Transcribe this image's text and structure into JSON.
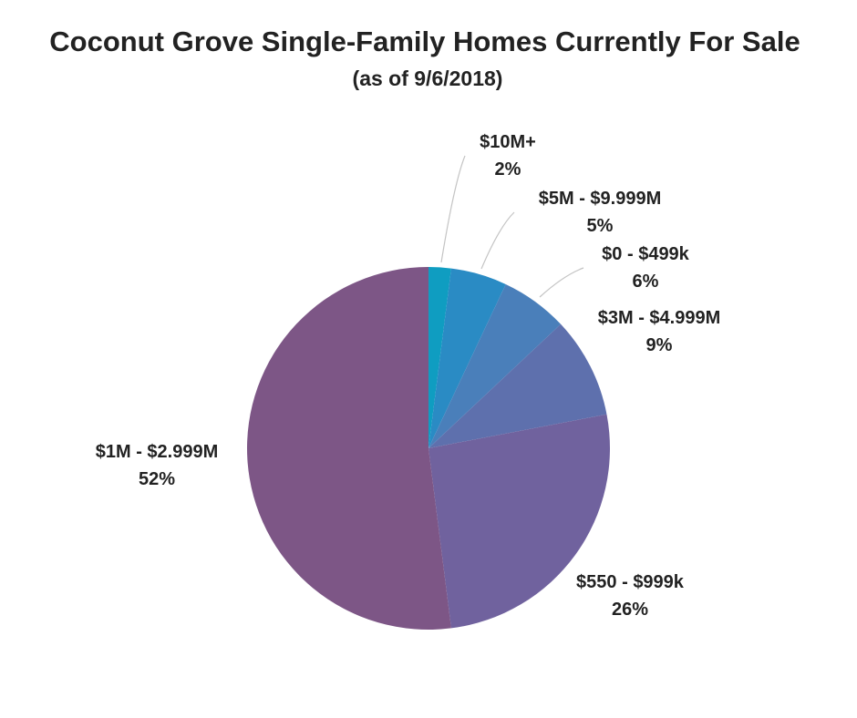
{
  "chart_data": {
    "type": "pie",
    "title": "Coconut Grove Single-Family Homes Currently For Sale",
    "subtitle": "(as of 9/6/2018)",
    "slices": [
      {
        "label": "$10M+",
        "value": 2,
        "value_label": "2%",
        "color": "#0f9dc1"
      },
      {
        "label": "$5M - $9.999M",
        "value": 5,
        "value_label": "5%",
        "color": "#2a8bc4"
      },
      {
        "label": "$0 - $499k",
        "value": 6,
        "value_label": "6%",
        "color": "#4a7fba"
      },
      {
        "label": "$3M - $4.999M",
        "value": 9,
        "value_label": "9%",
        "color": "#5e70ad"
      },
      {
        "label": "$550 - $999k",
        "value": 26,
        "value_label": "26%",
        "color": "#70629e"
      },
      {
        "label": "$1M - $2.999M",
        "value": 52,
        "value_label": "52%",
        "color": "#7d5686"
      }
    ],
    "start_angle": "top",
    "direction": "clockwise",
    "label_placement": "outside"
  }
}
